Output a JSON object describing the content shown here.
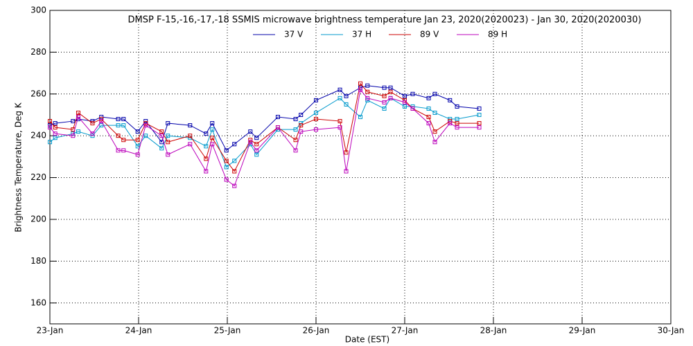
{
  "chart_data": {
    "type": "line",
    "title": "DMSP F-15,-16,-17,-18 SSMIS microwave brightness temperature Jan 23, 2020(2020023) - Jan 30, 2020(2020030)",
    "x_label": "Date (EST)",
    "y_label": "Brightness Temperature, Deg K",
    "x": [
      0,
      0.06,
      0.26,
      0.32,
      0.48,
      0.58,
      0.77,
      0.83,
      0.99,
      1.08,
      1.26,
      1.33,
      1.58,
      1.76,
      1.83,
      1.99,
      2.08,
      2.26,
      2.33,
      2.57,
      2.77,
      2.83,
      3.0,
      3.27,
      3.34,
      3.5,
      3.58,
      3.77,
      3.84,
      4.0,
      4.09,
      4.27,
      4.34,
      4.51,
      4.59,
      4.84
    ],
    "series": [
      {
        "name": "37 V",
        "color": "#0000aa",
        "values": [
          245,
          246,
          247,
          248,
          247,
          249,
          248,
          248,
          242,
          247,
          237,
          246,
          245,
          241,
          246,
          233,
          236,
          242,
          239,
          249,
          248,
          250,
          257,
          262,
          259,
          263,
          264,
          263,
          263,
          259,
          260,
          258,
          260,
          257,
          254,
          253
        ]
      },
      {
        "name": "37 H",
        "color": "#0099cc",
        "values": [
          237,
          239,
          241,
          242,
          240,
          245,
          245,
          245,
          235,
          240,
          234,
          240,
          239,
          235,
          243,
          225,
          228,
          236,
          231,
          243,
          243,
          246,
          251,
          258,
          255,
          249,
          257,
          253,
          258,
          254,
          254,
          253,
          251,
          248,
          248,
          250
        ]
      },
      {
        "name": "89 V",
        "color": "#cc0000",
        "values": [
          247,
          244,
          243,
          251,
          246,
          248,
          240,
          238,
          238,
          246,
          242,
          237,
          240,
          229,
          239,
          228,
          223,
          238,
          236,
          244,
          238,
          245,
          248,
          247,
          232,
          265,
          261,
          259,
          261,
          257,
          253,
          249,
          242,
          247,
          246,
          246
        ]
      },
      {
        "name": "89 H",
        "color": "#bb00bb",
        "values": [
          244,
          241,
          240,
          249,
          241,
          247,
          233,
          233,
          231,
          245,
          240,
          231,
          236,
          223,
          236,
          219,
          216,
          237,
          233,
          244,
          233,
          242,
          243,
          244,
          223,
          262,
          258,
          256,
          258,
          256,
          253,
          246,
          237,
          246,
          244,
          244
        ]
      }
    ],
    "xlim": [
      0,
      7
    ],
    "xticks": [
      {
        "value": 0,
        "label": "23-Jan"
      },
      {
        "value": 1,
        "label": "24-Jan"
      },
      {
        "value": 2,
        "label": "25-Jan"
      },
      {
        "value": 3,
        "label": "26-Jan"
      },
      {
        "value": 4,
        "label": "27-Jan"
      },
      {
        "value": 5,
        "label": "28-Jan"
      },
      {
        "value": 6,
        "label": "29-Jan"
      },
      {
        "value": 7,
        "label": "30-Jan"
      }
    ],
    "ylim": [
      150,
      300
    ],
    "yticks": [
      160,
      180,
      200,
      220,
      240,
      260,
      280,
      300
    ],
    "grid": true
  }
}
